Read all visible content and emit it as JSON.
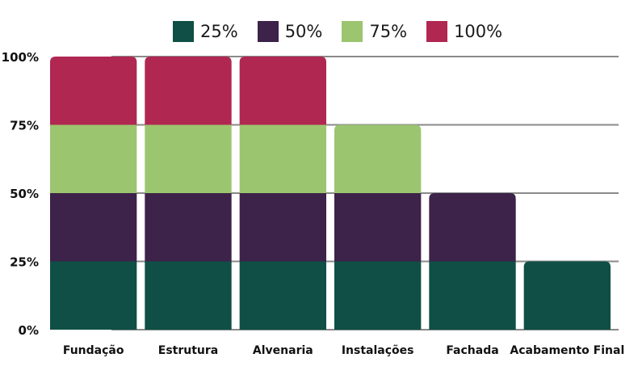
{
  "chart_data": {
    "type": "bar",
    "stacked": true,
    "categories": [
      "Fundação",
      "Estrutura",
      "Alvenaria",
      "Instalações",
      "Fachada",
      "Acabamento Final"
    ],
    "series": [
      {
        "name": "25%",
        "color": "#0f4f45",
        "values": [
          25,
          25,
          25,
          25,
          25,
          25
        ]
      },
      {
        "name": "50%",
        "color": "#3d2249",
        "values": [
          25,
          25,
          25,
          25,
          25,
          0
        ]
      },
      {
        "name": "75%",
        "color": "#9cc56f",
        "values": [
          25,
          25,
          25,
          25,
          0,
          0
        ]
      },
      {
        "name": "100%",
        "color": "#b02752",
        "values": [
          25,
          25,
          25,
          0,
          0,
          0
        ]
      }
    ],
    "y_ticks": [
      "0%",
      "25%",
      "50%",
      "75%",
      "100%"
    ],
    "ylim": [
      0,
      100
    ],
    "grid": true,
    "legend_position": "top-center"
  }
}
